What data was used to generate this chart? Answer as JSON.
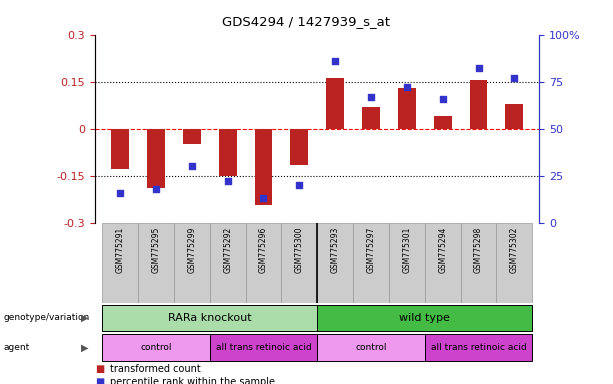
{
  "title": "GDS4294 / 1427939_s_at",
  "samples": [
    "GSM775291",
    "GSM775295",
    "GSM775299",
    "GSM775292",
    "GSM775296",
    "GSM775300",
    "GSM775293",
    "GSM775297",
    "GSM775301",
    "GSM775294",
    "GSM775298",
    "GSM775302"
  ],
  "bar_values": [
    -0.13,
    -0.19,
    -0.05,
    -0.15,
    -0.245,
    -0.115,
    0.16,
    0.07,
    0.13,
    0.04,
    0.155,
    0.08
  ],
  "scatter_values": [
    16,
    18,
    30,
    22,
    13,
    20,
    86,
    67,
    72,
    66,
    82,
    77
  ],
  "bar_color": "#bb2222",
  "scatter_color": "#3333cc",
  "ylim_left": [
    -0.3,
    0.3
  ],
  "ylim_right": [
    0,
    100
  ],
  "yticks_left": [
    -0.3,
    -0.15,
    0,
    0.15,
    0.3
  ],
  "yticks_right": [
    0,
    25,
    50,
    75,
    100
  ],
  "ytick_labels_right": [
    "0",
    "25",
    "50",
    "75",
    "100%"
  ],
  "ytick_labels_left": [
    "-0.3",
    "-0.15",
    "0",
    "0.15",
    "0.3"
  ],
  "bar_width": 0.5,
  "scatter_marker": "s",
  "scatter_size": 18,
  "genotype_groups": [
    {
      "label": "RARa knockout",
      "start": 0,
      "end": 5,
      "color": "#aaddaa"
    },
    {
      "label": "wild type",
      "start": 6,
      "end": 11,
      "color": "#44bb44"
    }
  ],
  "agent_groups": [
    {
      "label": "control",
      "start": 0,
      "end": 2,
      "color": "#ee99ee"
    },
    {
      "label": "all trans retinoic acid",
      "start": 3,
      "end": 5,
      "color": "#cc44cc"
    },
    {
      "label": "control",
      "start": 6,
      "end": 8,
      "color": "#ee99ee"
    },
    {
      "label": "all trans retinoic acid",
      "start": 9,
      "end": 11,
      "color": "#cc44cc"
    }
  ],
  "legend_items": [
    {
      "label": "transformed count",
      "color": "#bb2222"
    },
    {
      "label": "percentile rank within the sample",
      "color": "#3333cc"
    }
  ],
  "sample_box_color": "#cccccc",
  "sample_box_edge": "#999999"
}
